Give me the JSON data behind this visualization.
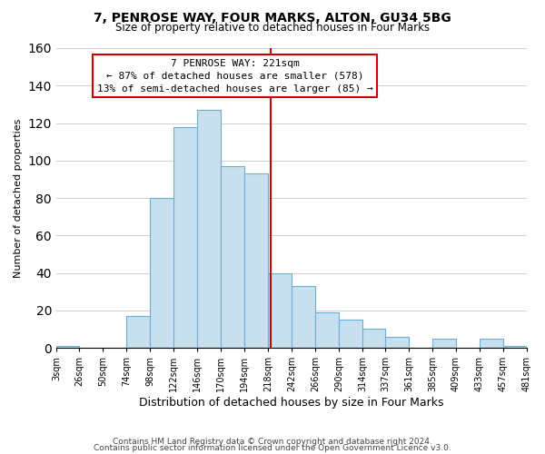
{
  "title": "7, PENROSE WAY, FOUR MARKS, ALTON, GU34 5BG",
  "subtitle": "Size of property relative to detached houses in Four Marks",
  "xlabel": "Distribution of detached houses by size in Four Marks",
  "ylabel": "Number of detached properties",
  "bar_color": "#c8dff0",
  "bar_edge_color": "#6baed6",
  "bins": [
    3,
    26,
    50,
    74,
    98,
    122,
    146,
    170,
    194,
    218,
    242,
    266,
    290,
    314,
    337,
    361,
    385,
    409,
    433,
    457,
    481
  ],
  "counts": [
    1,
    0,
    0,
    17,
    80,
    118,
    127,
    97,
    93,
    40,
    33,
    19,
    15,
    10,
    6,
    0,
    5,
    0,
    5,
    1
  ],
  "tick_labels": [
    "3sqm",
    "26sqm",
    "50sqm",
    "74sqm",
    "98sqm",
    "122sqm",
    "146sqm",
    "170sqm",
    "194sqm",
    "218sqm",
    "242sqm",
    "266sqm",
    "290sqm",
    "314sqm",
    "337sqm",
    "361sqm",
    "385sqm",
    "409sqm",
    "433sqm",
    "457sqm",
    "481sqm"
  ],
  "ylim": [
    0,
    160
  ],
  "yticks": [
    0,
    20,
    40,
    60,
    80,
    100,
    120,
    140,
    160
  ],
  "property_line_x": 221,
  "property_line_color": "#cc0000",
  "annotation_title": "7 PENROSE WAY: 221sqm",
  "annotation_line1": "← 87% of detached houses are smaller (578)",
  "annotation_line2": "13% of semi-detached houses are larger (85) →",
  "annotation_box_color": "#ffffff",
  "annotation_box_edge": "#cc0000",
  "footer1": "Contains HM Land Registry data © Crown copyright and database right 2024.",
  "footer2": "Contains public sector information licensed under the Open Government Licence v3.0.",
  "background_color": "#ffffff",
  "grid_color": "#d0d0d0"
}
